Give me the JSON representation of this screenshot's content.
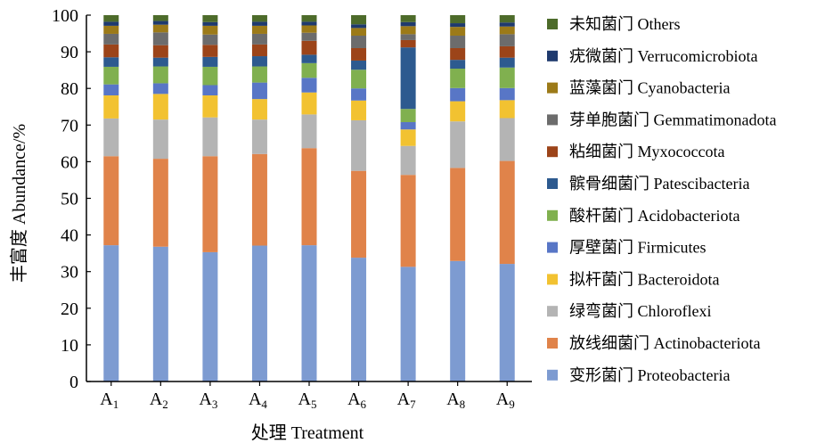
{
  "chart_data": {
    "type": "bar",
    "stacked": true,
    "xlabel": "处理 Treatment",
    "ylabel": "丰富度 Abundance/%",
    "ylim": [
      0,
      100
    ],
    "yticks": [
      "0",
      "10",
      "20",
      "30",
      "40",
      "50",
      "60",
      "70",
      "80",
      "90",
      "100"
    ],
    "categories": [
      {
        "main": "A",
        "sub": "1"
      },
      {
        "main": "A",
        "sub": "2"
      },
      {
        "main": "A",
        "sub": "3"
      },
      {
        "main": "A",
        "sub": "4"
      },
      {
        "main": "A",
        "sub": "5"
      },
      {
        "main": "A",
        "sub": "6"
      },
      {
        "main": "A",
        "sub": "7"
      },
      {
        "main": "A",
        "sub": "8"
      },
      {
        "main": "A",
        "sub": "9"
      }
    ],
    "grid": false,
    "legend_position": "right",
    "series": [
      {
        "name": "变形菌门 Proteobacteria",
        "color": "#7d9bd1",
        "values": [
          37.2,
          36.8,
          35.3,
          37.1,
          37.2,
          33.8,
          31.3,
          32.9,
          32.1
        ]
      },
      {
        "name": "放线细菌门 Actinobacteriota",
        "color": "#e0834a",
        "values": [
          24.3,
          24.0,
          26.2,
          25.0,
          26.5,
          23.7,
          25.1,
          25.4,
          28.1
        ]
      },
      {
        "name": "绿弯菌门 Chloroflexi",
        "color": "#b4b4b4",
        "values": [
          10.3,
          10.7,
          10.6,
          9.4,
          9.2,
          13.8,
          7.9,
          12.7,
          11.7
        ]
      },
      {
        "name": "拟杆菌门 Bacteroidota",
        "color": "#f2c231",
        "values": [
          6.3,
          7.0,
          6.0,
          5.6,
          6.0,
          5.4,
          4.5,
          5.5,
          4.9
        ]
      },
      {
        "name": "厚壁菌门 Firmicutes",
        "color": "#5876c6",
        "values": [
          3.0,
          2.9,
          2.8,
          4.5,
          4.0,
          3.3,
          2.0,
          3.6,
          3.3
        ]
      },
      {
        "name": "酸杆菌门 Acidobacteriota",
        "color": "#80b04f",
        "values": [
          4.8,
          4.6,
          5.0,
          4.4,
          4.0,
          5.1,
          3.6,
          5.3,
          5.6
        ]
      },
      {
        "name": "髌骨细菌门 Patescibacteria",
        "color": "#2d5a8f",
        "values": [
          2.6,
          2.4,
          2.7,
          2.8,
          2.3,
          2.5,
          16.8,
          2.4,
          2.7
        ]
      },
      {
        "name": "粘细菌门 Myxococcota",
        "color": "#9c4419",
        "values": [
          3.5,
          3.4,
          3.3,
          3.2,
          3.8,
          3.4,
          2.0,
          3.2,
          3.1
        ]
      },
      {
        "name": "芽单胞菌门 Gemmatimonadota",
        "color": "#6c6c6c",
        "values": [
          2.9,
          3.5,
          2.8,
          2.9,
          2.2,
          3.4,
          1.6,
          3.4,
          3.3
        ]
      },
      {
        "name": "蓝藻菌门 Cyanobacteria",
        "color": "#9c7a18",
        "values": [
          2.2,
          2.1,
          2.4,
          2.2,
          2.0,
          2.1,
          2.2,
          2.4,
          2.1
        ]
      },
      {
        "name": "疣微菌门 Verrucomicrobiota",
        "color": "#1f3a6e",
        "values": [
          1.1,
          1.0,
          1.0,
          1.1,
          1.0,
          1.0,
          1.1,
          1.0,
          1.1
        ]
      },
      {
        "name": "未知菌门 Others",
        "color": "#4d6b2a",
        "values": [
          1.8,
          1.6,
          1.9,
          1.8,
          1.8,
          2.5,
          1.9,
          2.2,
          2.0
        ]
      }
    ]
  }
}
